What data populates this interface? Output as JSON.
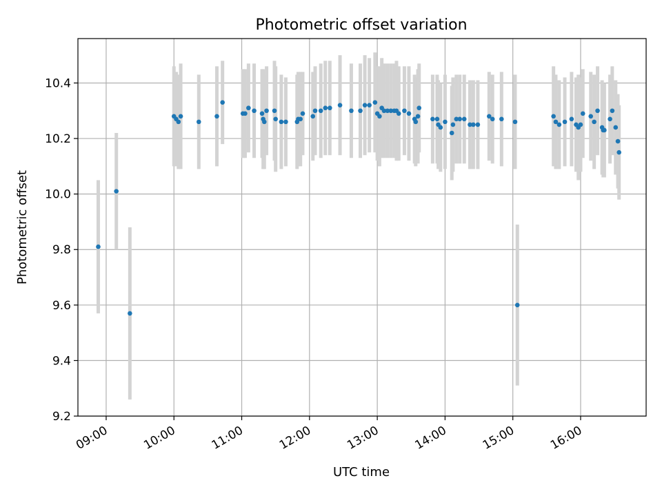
{
  "chart_data": {
    "type": "scatter",
    "title": "Photometric offset variation",
    "xlabel": "UTC time",
    "ylabel": "Photometric offset",
    "x_is_time": true,
    "x_unit": "UTC time",
    "xlim": [
      "08:35",
      "16:58"
    ],
    "ylim": [
      9.2,
      10.56
    ],
    "grid": true,
    "colors": {
      "points": "#1f77b4",
      "errorbars": "#d3d3d3",
      "grid": "#b0b0b0"
    },
    "xticks": [
      "09:00",
      "10:00",
      "11:00",
      "12:00",
      "13:00",
      "14:00",
      "15:00",
      "16:00"
    ],
    "yticks": [
      "9.2",
      "9.4",
      "9.6",
      "9.8",
      "10.0",
      "10.2",
      "10.4"
    ],
    "series": [
      {
        "x": [
          "08:53",
          "09:09",
          "09:21",
          "10:00",
          "10:02",
          "10:04",
          "10:06",
          "10:22",
          "10:38",
          "10:43",
          "11:01",
          "11:03",
          "11:06",
          "11:11",
          "11:18",
          "11:19",
          "11:20",
          "11:22",
          "11:29",
          "11:30",
          "11:35",
          "11:39",
          "11:49",
          "11:50",
          "11:52",
          "11:54",
          "12:03",
          "12:05",
          "12:10",
          "12:14",
          "12:18",
          "12:27",
          "12:37",
          "12:45",
          "12:49",
          "12:53",
          "12:58",
          "13:00",
          "13:02",
          "13:04",
          "13:06",
          "13:09",
          "13:12",
          "13:15",
          "13:17",
          "13:19",
          "13:24",
          "13:28",
          "13:33",
          "13:34",
          "13:36",
          "13:37",
          "13:49",
          "13:53",
          "13:54",
          "13:56",
          "14:00",
          "14:06",
          "14:07",
          "14:10",
          "14:13",
          "14:17",
          "14:22",
          "14:25",
          "14:29",
          "14:39",
          "14:42",
          "14:50",
          "15:02",
          "15:04",
          "15:36",
          "15:38",
          "15:41",
          "15:46",
          "15:52",
          "15:56",
          "15:58",
          "16:00",
          "16:02",
          "16:09",
          "16:12",
          "16:15",
          "16:19",
          "16:20",
          "16:21",
          "16:26",
          "16:28",
          "16:31",
          "16:33",
          "16:34"
        ],
        "y": [
          9.81,
          10.01,
          9.57,
          10.28,
          10.27,
          10.26,
          10.28,
          10.26,
          10.28,
          10.33,
          10.29,
          10.29,
          10.31,
          10.3,
          10.29,
          10.27,
          10.26,
          10.3,
          10.3,
          10.27,
          10.26,
          10.26,
          10.26,
          10.27,
          10.27,
          10.29,
          10.28,
          10.3,
          10.3,
          10.31,
          10.31,
          10.32,
          10.3,
          10.3,
          10.32,
          10.32,
          10.33,
          10.29,
          10.28,
          10.31,
          10.3,
          10.3,
          10.3,
          10.3,
          10.3,
          10.29,
          10.3,
          10.29,
          10.27,
          10.26,
          10.28,
          10.31,
          10.27,
          10.27,
          10.25,
          10.24,
          10.26,
          10.22,
          10.25,
          10.27,
          10.27,
          10.27,
          10.25,
          10.25,
          10.25,
          10.28,
          10.27,
          10.27,
          10.26,
          9.6,
          10.28,
          10.26,
          10.25,
          10.26,
          10.27,
          10.25,
          10.24,
          10.25,
          10.29,
          10.28,
          10.26,
          10.3,
          10.24,
          10.23,
          10.23,
          10.27,
          10.3,
          10.24,
          10.19,
          10.15
        ],
        "yerr": [
          0.24,
          0.21,
          0.31,
          0.18,
          0.17,
          0.17,
          0.19,
          0.17,
          0.18,
          0.15,
          0.16,
          0.16,
          0.16,
          0.17,
          0.16,
          0.18,
          0.17,
          0.16,
          0.18,
          0.19,
          0.17,
          0.16,
          0.17,
          0.17,
          0.17,
          0.15,
          0.16,
          0.16,
          0.17,
          0.17,
          0.17,
          0.18,
          0.17,
          0.17,
          0.18,
          0.17,
          0.18,
          0.17,
          0.18,
          0.18,
          0.17,
          0.17,
          0.17,
          0.17,
          0.18,
          0.17,
          0.16,
          0.17,
          0.16,
          0.16,
          0.17,
          0.16,
          0.16,
          0.16,
          0.16,
          0.16,
          0.17,
          0.17,
          0.17,
          0.16,
          0.16,
          0.16,
          0.16,
          0.16,
          0.16,
          0.16,
          0.16,
          0.17,
          0.17,
          0.29,
          0.18,
          0.17,
          0.16,
          0.16,
          0.17,
          0.17,
          0.19,
          0.17,
          0.16,
          0.16,
          0.17,
          0.16,
          0.17,
          0.17,
          0.17,
          0.16,
          0.16,
          0.17,
          0.17,
          0.17
        ]
      }
    ]
  }
}
